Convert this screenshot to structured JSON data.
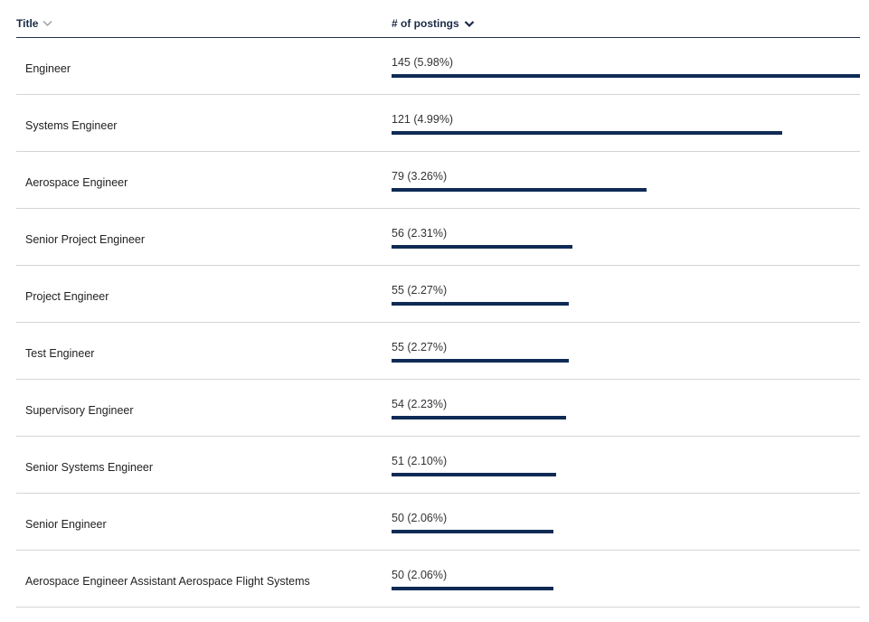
{
  "table": {
    "columns": {
      "title_label": "Title",
      "postings_label": "# of postings"
    },
    "colors": {
      "bar": "#0f2b55",
      "header_text": "#1b2a47",
      "sort_inactive": "#9aa0a8"
    },
    "icons": {
      "title_sort": "chevron-down-icon",
      "postings_sort": "chevron-down-icon"
    },
    "max_count": 145,
    "rows": [
      {
        "title": "Engineer",
        "count": 145,
        "percent": 5.98,
        "label": "145 (5.98%)"
      },
      {
        "title": "Systems Engineer",
        "count": 121,
        "percent": 4.99,
        "label": "121 (4.99%)"
      },
      {
        "title": "Aerospace Engineer",
        "count": 79,
        "percent": 3.26,
        "label": "79 (3.26%)"
      },
      {
        "title": "Senior Project Engineer",
        "count": 56,
        "percent": 2.31,
        "label": "56 (2.31%)"
      },
      {
        "title": "Project Engineer",
        "count": 55,
        "percent": 2.27,
        "label": "55 (2.27%)"
      },
      {
        "title": "Test Engineer",
        "count": 55,
        "percent": 2.27,
        "label": "55 (2.27%)"
      },
      {
        "title": "Supervisory Engineer",
        "count": 54,
        "percent": 2.23,
        "label": "54 (2.23%)"
      },
      {
        "title": "Senior Systems Engineer",
        "count": 51,
        "percent": 2.1,
        "label": "51 (2.10%)"
      },
      {
        "title": "Senior Engineer",
        "count": 50,
        "percent": 2.06,
        "label": "50 (2.06%)"
      },
      {
        "title": "Aerospace Engineer Assistant Aerospace Flight Systems",
        "count": 50,
        "percent": 2.06,
        "label": "50 (2.06%)"
      }
    ]
  }
}
